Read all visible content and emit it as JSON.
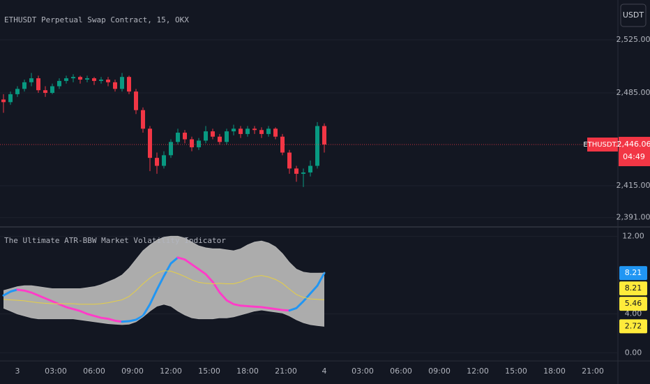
{
  "chart_data": [
    {
      "type": "candlestick",
      "title": "ETHUSDT Perpetual Swap Contract, 15, OKX",
      "currency": "USDT",
      "symbol_label": "ETHUSDT.P",
      "countdown": "04:49",
      "last_price": {
        "value": 2446.06,
        "label": "2,446.06"
      },
      "up_color": "#089981",
      "down_color": "#f23645",
      "ylim": [
        2386.6,
        2555
      ],
      "yticks": [
        {
          "value": 2525,
          "label": "2,525.00"
        },
        {
          "value": 2485,
          "label": "2,485.00"
        },
        {
          "value": 2415,
          "label": "2,415.00"
        },
        {
          "value": 2391,
          "label": "2,391.00"
        }
      ],
      "grid": true,
      "open": [
        2480,
        2478,
        2484,
        2488,
        2493,
        2496,
        2487,
        2485,
        2490,
        2494,
        2496,
        2497,
        2495,
        2496,
        2494,
        2495,
        2493,
        2488,
        2497,
        2486,
        2472,
        2458,
        2436,
        2430,
        2438,
        2448,
        2455,
        2450,
        2444,
        2449,
        2456,
        2452,
        2448,
        2456,
        2458,
        2454,
        2458,
        2457,
        2454,
        2458,
        2452,
        2440,
        2428,
        2424,
        2425,
        2430,
        2460
      ],
      "high": [
        2484,
        2486,
        2490,
        2495,
        2500,
        2498,
        2490,
        2492,
        2496,
        2498,
        2499,
        2498,
        2498,
        2497,
        2497,
        2497,
        2495,
        2500,
        2498,
        2488,
        2474,
        2460,
        2440,
        2441,
        2450,
        2458,
        2457,
        2452,
        2451,
        2460,
        2458,
        2454,
        2458,
        2461,
        2460,
        2460,
        2460,
        2459,
        2460,
        2459,
        2454,
        2442,
        2430,
        2428,
        2434,
        2463,
        2462
      ],
      "low": [
        2470,
        2476,
        2482,
        2486,
        2490,
        2485,
        2482,
        2484,
        2488,
        2492,
        2493,
        2492,
        2493,
        2491,
        2492,
        2490,
        2486,
        2486,
        2484,
        2469,
        2455,
        2426,
        2424,
        2428,
        2436,
        2446,
        2447,
        2441,
        2442,
        2447,
        2450,
        2446,
        2446,
        2453,
        2451,
        2452,
        2454,
        2451,
        2452,
        2450,
        2438,
        2424,
        2418,
        2414,
        2422,
        2428,
        2440
      ],
      "close": [
        2478,
        2484,
        2488,
        2493,
        2496,
        2487,
        2485,
        2490,
        2494,
        2496,
        2497,
        2495,
        2496,
        2494,
        2495,
        2493,
        2488,
        2497,
        2486,
        2472,
        2458,
        2436,
        2430,
        2438,
        2448,
        2455,
        2450,
        2444,
        2449,
        2456,
        2452,
        2448,
        2456,
        2458,
        2454,
        2458,
        2457,
        2454,
        2458,
        2452,
        2440,
        2428,
        2424,
        2425,
        2430,
        2460,
        2446.06
      ]
    },
    {
      "type": "line",
      "title": "The Ultimate ATR-BBW Market Volatility Indicator",
      "ylim": [
        -0.7,
        12.6
      ],
      "yticks": [
        {
          "value": 12,
          "label": "12.00"
        },
        {
          "value": 4,
          "label": "4.00"
        },
        {
          "value": 0,
          "label": "0.00"
        }
      ],
      "x_labels": [
        "3",
        "03:00",
        "06:00",
        "09:00",
        "12:00",
        "15:00",
        "18:00",
        "21:00",
        "4",
        "03:00",
        "06:00",
        "09:00",
        "12:00",
        "15:00",
        "18:00",
        "21:00"
      ],
      "band_fill": "#b4b4b4",
      "fill_between": [
        1,
        3
      ],
      "series": [
        {
          "color": "#2196f3",
          "falling_color": "#ff3dc8",
          "width": 3,
          "label_color": "#2196f3",
          "label_text_color": "#ffffff",
          "values": [
            5.9,
            6.3,
            6.5,
            6.4,
            6.2,
            5.9,
            5.6,
            5.3,
            5.0,
            4.7,
            4.5,
            4.3,
            4.0,
            3.8,
            3.6,
            3.5,
            3.3,
            3.2,
            3.25,
            3.4,
            3.8,
            5.0,
            6.5,
            7.9,
            9.2,
            9.8,
            9.6,
            9.1,
            8.6,
            8.1,
            7.3,
            6.2,
            5.4,
            5.0,
            4.85,
            4.8,
            4.75,
            4.7,
            4.6,
            4.5,
            4.4,
            4.35,
            4.6,
            5.3,
            6.1,
            6.9,
            8.21
          ]
        },
        {
          "color": "#b4b4b4",
          "width": 1,
          "label_color": "#ffeb3b",
          "label_text_color": "#131722",
          "values": [
            6.4,
            6.6,
            6.8,
            6.9,
            6.9,
            6.8,
            6.7,
            6.6,
            6.6,
            6.6,
            6.6,
            6.6,
            6.7,
            6.8,
            7.0,
            7.3,
            7.6,
            8.0,
            8.7,
            9.6,
            10.5,
            11.1,
            11.6,
            11.9,
            12.0,
            12.0,
            11.8,
            11.4,
            11.0,
            10.8,
            10.7,
            10.7,
            10.6,
            10.5,
            10.7,
            11.1,
            11.4,
            11.5,
            11.3,
            10.9,
            10.2,
            9.3,
            8.6,
            8.3,
            8.2,
            8.2,
            8.21
          ]
        },
        {
          "color": "#e6cf45",
          "width": 1,
          "label_color": "#ffeb3b",
          "label_text_color": "#131722",
          "values": [
            5.5,
            5.45,
            5.4,
            5.35,
            5.25,
            5.15,
            5.1,
            5.05,
            5.05,
            5.05,
            5.05,
            5.0,
            5.0,
            5.0,
            5.05,
            5.15,
            5.3,
            5.45,
            5.8,
            6.4,
            7.1,
            7.7,
            8.2,
            8.45,
            8.4,
            8.15,
            7.85,
            7.5,
            7.25,
            7.15,
            7.1,
            7.15,
            7.1,
            7.1,
            7.3,
            7.6,
            7.85,
            7.95,
            7.8,
            7.55,
            7.15,
            6.55,
            6.0,
            5.7,
            5.55,
            5.5,
            5.46
          ]
        },
        {
          "color": "#b4b4b4",
          "width": 1,
          "label_color": "#ffeb3b",
          "label_text_color": "#131722",
          "values": [
            4.6,
            4.3,
            4.0,
            3.8,
            3.6,
            3.5,
            3.5,
            3.5,
            3.5,
            3.5,
            3.5,
            3.4,
            3.3,
            3.2,
            3.1,
            3.0,
            2.95,
            2.9,
            2.95,
            3.2,
            3.7,
            4.3,
            4.8,
            5.0,
            4.8,
            4.3,
            3.9,
            3.6,
            3.5,
            3.5,
            3.5,
            3.6,
            3.6,
            3.7,
            3.9,
            4.1,
            4.3,
            4.4,
            4.3,
            4.2,
            4.1,
            3.8,
            3.4,
            3.1,
            2.9,
            2.8,
            2.72
          ]
        }
      ]
    }
  ]
}
